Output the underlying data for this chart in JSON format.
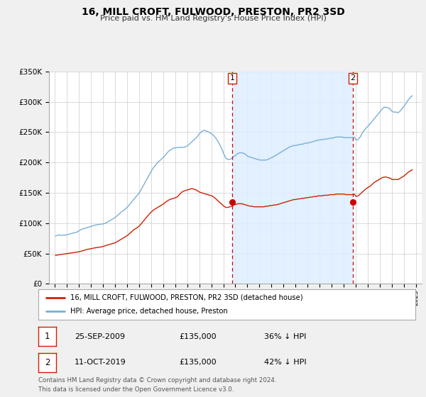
{
  "title": "16, MILL CROFT, FULWOOD, PRESTON, PR2 3SD",
  "subtitle": "Price paid vs. HM Land Registry's House Price Index (HPI)",
  "ylim": [
    0,
    350000
  ],
  "yticks": [
    0,
    50000,
    100000,
    150000,
    200000,
    250000,
    300000,
    350000
  ],
  "ytick_labels": [
    "£0",
    "£50K",
    "£100K",
    "£150K",
    "£200K",
    "£250K",
    "£300K",
    "£350K"
  ],
  "xlim_start": 1994.5,
  "xlim_end": 2025.5,
  "background_color": "#f0f0f0",
  "plot_bg_color": "#ffffff",
  "grid_color": "#cccccc",
  "hpi_color": "#7ab0d4",
  "price_color": "#cc2200",
  "marker_color": "#cc0000",
  "shade_color": "#ddeeff",
  "vline_color": "#cc0000",
  "event1_x": 2009.73,
  "event1_price": 135000,
  "event1_date": "25-SEP-2009",
  "event1_pct": "36% ↓ HPI",
  "event2_x": 2019.78,
  "event2_price": 135000,
  "event2_date": "11-OCT-2019",
  "event2_pct": "42% ↓ HPI",
  "legend_label_price": "16, MILL CROFT, FULWOOD, PRESTON, PR2 3SD (detached house)",
  "legend_label_hpi": "HPI: Average price, detached house, Preston",
  "footer_line1": "Contains HM Land Registry data © Crown copyright and database right 2024.",
  "footer_line2": "This data is licensed under the Open Government Licence v3.0.",
  "hpi_data": [
    [
      1995.04,
      79000
    ],
    [
      1995.21,
      80000
    ],
    [
      1995.38,
      80500
    ],
    [
      1995.54,
      80000
    ],
    [
      1995.71,
      80500
    ],
    [
      1995.88,
      80500
    ],
    [
      1996.04,
      81000
    ],
    [
      1996.21,
      82000
    ],
    [
      1996.38,
      83000
    ],
    [
      1996.54,
      84000
    ],
    [
      1996.71,
      84500
    ],
    [
      1996.88,
      86000
    ],
    [
      1997.04,
      88000
    ],
    [
      1997.21,
      90000
    ],
    [
      1997.38,
      91000
    ],
    [
      1997.54,
      92000
    ],
    [
      1997.71,
      93000
    ],
    [
      1997.88,
      94000
    ],
    [
      1998.04,
      95000
    ],
    [
      1998.21,
      96000
    ],
    [
      1998.38,
      97000
    ],
    [
      1998.54,
      97500
    ],
    [
      1998.71,
      98000
    ],
    [
      1998.88,
      98500
    ],
    [
      1999.04,
      99000
    ],
    [
      1999.21,
      100000
    ],
    [
      1999.38,
      102000
    ],
    [
      1999.54,
      104000
    ],
    [
      1999.71,
      106000
    ],
    [
      1999.88,
      108000
    ],
    [
      2000.04,
      110000
    ],
    [
      2000.21,
      113000
    ],
    [
      2000.38,
      116000
    ],
    [
      2000.54,
      119000
    ],
    [
      2000.71,
      121000
    ],
    [
      2000.88,
      124000
    ],
    [
      2001.04,
      127000
    ],
    [
      2001.21,
      131000
    ],
    [
      2001.38,
      135000
    ],
    [
      2001.54,
      139000
    ],
    [
      2001.71,
      143000
    ],
    [
      2001.88,
      147000
    ],
    [
      2002.04,
      151000
    ],
    [
      2002.21,
      157000
    ],
    [
      2002.38,
      163000
    ],
    [
      2002.54,
      169000
    ],
    [
      2002.71,
      175000
    ],
    [
      2002.88,
      181000
    ],
    [
      2003.04,
      187000
    ],
    [
      2003.21,
      192000
    ],
    [
      2003.38,
      196000
    ],
    [
      2003.54,
      200000
    ],
    [
      2003.71,
      203000
    ],
    [
      2003.88,
      206000
    ],
    [
      2004.04,
      209000
    ],
    [
      2004.21,
      213000
    ],
    [
      2004.38,
      217000
    ],
    [
      2004.54,
      220000
    ],
    [
      2004.71,
      222000
    ],
    [
      2004.88,
      224000
    ],
    [
      2005.04,
      224000
    ],
    [
      2005.21,
      225000
    ],
    [
      2005.38,
      225000
    ],
    [
      2005.54,
      225000
    ],
    [
      2005.71,
      225000
    ],
    [
      2005.88,
      226000
    ],
    [
      2006.04,
      228000
    ],
    [
      2006.21,
      231000
    ],
    [
      2006.38,
      234000
    ],
    [
      2006.54,
      237000
    ],
    [
      2006.71,
      240000
    ],
    [
      2006.88,
      244000
    ],
    [
      2007.04,
      248000
    ],
    [
      2007.21,
      251000
    ],
    [
      2007.38,
      253000
    ],
    [
      2007.54,
      252000
    ],
    [
      2007.71,
      251000
    ],
    [
      2007.88,
      249000
    ],
    [
      2008.04,
      247000
    ],
    [
      2008.21,
      244000
    ],
    [
      2008.38,
      240000
    ],
    [
      2008.54,
      235000
    ],
    [
      2008.71,
      229000
    ],
    [
      2008.88,
      222000
    ],
    [
      2009.04,
      214000
    ],
    [
      2009.21,
      207000
    ],
    [
      2009.38,
      205000
    ],
    [
      2009.54,
      205000
    ],
    [
      2009.71,
      207000
    ],
    [
      2009.88,
      210000
    ],
    [
      2010.04,
      212000
    ],
    [
      2010.21,
      215000
    ],
    [
      2010.38,
      216000
    ],
    [
      2010.54,
      216000
    ],
    [
      2010.71,
      215000
    ],
    [
      2010.88,
      213000
    ],
    [
      2011.04,
      210000
    ],
    [
      2011.21,
      209000
    ],
    [
      2011.38,
      208000
    ],
    [
      2011.54,
      207000
    ],
    [
      2011.71,
      206000
    ],
    [
      2011.88,
      205000
    ],
    [
      2012.04,
      204000
    ],
    [
      2012.21,
      204000
    ],
    [
      2012.38,
      204000
    ],
    [
      2012.54,
      204000
    ],
    [
      2012.71,
      205000
    ],
    [
      2012.88,
      207000
    ],
    [
      2013.04,
      208000
    ],
    [
      2013.21,
      210000
    ],
    [
      2013.38,
      212000
    ],
    [
      2013.54,
      214000
    ],
    [
      2013.71,
      216000
    ],
    [
      2013.88,
      218000
    ],
    [
      2014.04,
      220000
    ],
    [
      2014.21,
      222000
    ],
    [
      2014.38,
      224000
    ],
    [
      2014.54,
      226000
    ],
    [
      2014.71,
      227000
    ],
    [
      2014.88,
      228000
    ],
    [
      2015.04,
      228000
    ],
    [
      2015.21,
      229000
    ],
    [
      2015.38,
      230000
    ],
    [
      2015.54,
      230000
    ],
    [
      2015.71,
      231000
    ],
    [
      2015.88,
      232000
    ],
    [
      2016.04,
      232000
    ],
    [
      2016.21,
      233000
    ],
    [
      2016.38,
      234000
    ],
    [
      2016.54,
      235000
    ],
    [
      2016.71,
      236000
    ],
    [
      2016.88,
      237000
    ],
    [
      2017.04,
      237000
    ],
    [
      2017.21,
      238000
    ],
    [
      2017.38,
      238000
    ],
    [
      2017.54,
      239000
    ],
    [
      2017.71,
      239000
    ],
    [
      2017.88,
      240000
    ],
    [
      2018.04,
      240000
    ],
    [
      2018.21,
      241000
    ],
    [
      2018.38,
      242000
    ],
    [
      2018.54,
      242000
    ],
    [
      2018.71,
      242000
    ],
    [
      2018.88,
      242000
    ],
    [
      2019.04,
      241000
    ],
    [
      2019.21,
      241000
    ],
    [
      2019.38,
      241000
    ],
    [
      2019.54,
      241000
    ],
    [
      2019.71,
      241000
    ],
    [
      2019.88,
      242000
    ],
    [
      2020.04,
      237000
    ],
    [
      2020.21,
      238000
    ],
    [
      2020.38,
      242000
    ],
    [
      2020.54,
      248000
    ],
    [
      2020.71,
      253000
    ],
    [
      2020.88,
      257000
    ],
    [
      2021.04,
      260000
    ],
    [
      2021.21,
      264000
    ],
    [
      2021.38,
      268000
    ],
    [
      2021.54,
      272000
    ],
    [
      2021.71,
      276000
    ],
    [
      2021.88,
      280000
    ],
    [
      2022.04,
      284000
    ],
    [
      2022.21,
      288000
    ],
    [
      2022.38,
      291000
    ],
    [
      2022.54,
      291000
    ],
    [
      2022.71,
      290000
    ],
    [
      2022.88,
      288000
    ],
    [
      2023.04,
      284000
    ],
    [
      2023.21,
      283000
    ],
    [
      2023.38,
      283000
    ],
    [
      2023.54,
      282000
    ],
    [
      2023.71,
      285000
    ],
    [
      2023.88,
      289000
    ],
    [
      2024.04,
      293000
    ],
    [
      2024.21,
      298000
    ],
    [
      2024.38,
      303000
    ],
    [
      2024.54,
      307000
    ],
    [
      2024.71,
      310000
    ]
  ],
  "price_data": [
    [
      1995.04,
      47000
    ],
    [
      1995.21,
      47500
    ],
    [
      1995.38,
      48000
    ],
    [
      1995.54,
      48500
    ],
    [
      1995.71,
      49000
    ],
    [
      1995.88,
      49500
    ],
    [
      1996.04,
      50000
    ],
    [
      1996.21,
      50500
    ],
    [
      1996.38,
      51000
    ],
    [
      1996.54,
      51500
    ],
    [
      1996.71,
      52000
    ],
    [
      1996.88,
      52500
    ],
    [
      1997.04,
      53000
    ],
    [
      1997.21,
      54000
    ],
    [
      1997.38,
      55000
    ],
    [
      1997.54,
      56000
    ],
    [
      1997.71,
      57000
    ],
    [
      1997.88,
      57500
    ],
    [
      1998.04,
      58000
    ],
    [
      1998.21,
      59000
    ],
    [
      1998.38,
      59500
    ],
    [
      1998.54,
      60000
    ],
    [
      1998.71,
      60500
    ],
    [
      1998.88,
      61000
    ],
    [
      1999.04,
      62000
    ],
    [
      1999.21,
      63000
    ],
    [
      1999.38,
      64000
    ],
    [
      1999.54,
      65000
    ],
    [
      1999.71,
      66000
    ],
    [
      1999.88,
      67000
    ],
    [
      2000.04,
      68000
    ],
    [
      2000.21,
      70000
    ],
    [
      2000.38,
      72000
    ],
    [
      2000.54,
      74000
    ],
    [
      2000.71,
      76000
    ],
    [
      2000.88,
      78000
    ],
    [
      2001.04,
      80000
    ],
    [
      2001.21,
      83000
    ],
    [
      2001.38,
      86000
    ],
    [
      2001.54,
      89000
    ],
    [
      2001.71,
      91000
    ],
    [
      2001.88,
      93000
    ],
    [
      2002.04,
      96000
    ],
    [
      2002.21,
      100000
    ],
    [
      2002.38,
      104000
    ],
    [
      2002.54,
      108000
    ],
    [
      2002.71,
      112000
    ],
    [
      2002.88,
      116000
    ],
    [
      2003.04,
      119000
    ],
    [
      2003.21,
      122000
    ],
    [
      2003.38,
      124000
    ],
    [
      2003.54,
      126000
    ],
    [
      2003.71,
      128000
    ],
    [
      2003.88,
      130000
    ],
    [
      2004.04,
      132000
    ],
    [
      2004.21,
      135000
    ],
    [
      2004.38,
      137000
    ],
    [
      2004.54,
      139000
    ],
    [
      2004.71,
      140000
    ],
    [
      2004.88,
      141000
    ],
    [
      2005.04,
      142000
    ],
    [
      2005.21,
      144000
    ],
    [
      2005.38,
      148000
    ],
    [
      2005.54,
      151000
    ],
    [
      2005.71,
      153000
    ],
    [
      2005.88,
      154000
    ],
    [
      2006.04,
      155000
    ],
    [
      2006.21,
      156000
    ],
    [
      2006.38,
      157000
    ],
    [
      2006.54,
      156000
    ],
    [
      2006.71,
      155000
    ],
    [
      2006.88,
      153000
    ],
    [
      2007.04,
      151000
    ],
    [
      2007.21,
      150000
    ],
    [
      2007.38,
      149000
    ],
    [
      2007.54,
      148000
    ],
    [
      2007.71,
      147000
    ],
    [
      2007.88,
      146000
    ],
    [
      2008.04,
      145000
    ],
    [
      2008.21,
      143000
    ],
    [
      2008.38,
      140000
    ],
    [
      2008.54,
      137000
    ],
    [
      2008.71,
      134000
    ],
    [
      2008.88,
      131000
    ],
    [
      2009.04,
      128000
    ],
    [
      2009.21,
      126000
    ],
    [
      2009.38,
      126000
    ],
    [
      2009.54,
      127000
    ],
    [
      2009.71,
      128000
    ],
    [
      2009.88,
      130000
    ],
    [
      2010.04,
      131000
    ],
    [
      2010.21,
      132000
    ],
    [
      2010.38,
      132000
    ],
    [
      2010.54,
      132000
    ],
    [
      2010.71,
      131000
    ],
    [
      2010.88,
      130000
    ],
    [
      2011.04,
      129000
    ],
    [
      2011.21,
      128000
    ],
    [
      2011.38,
      128000
    ],
    [
      2011.54,
      127000
    ],
    [
      2011.71,
      127000
    ],
    [
      2011.88,
      127000
    ],
    [
      2012.04,
      127000
    ],
    [
      2012.21,
      127000
    ],
    [
      2012.38,
      127000
    ],
    [
      2012.54,
      128000
    ],
    [
      2012.71,
      128000
    ],
    [
      2012.88,
      129000
    ],
    [
      2013.04,
      129000
    ],
    [
      2013.21,
      130000
    ],
    [
      2013.38,
      130000
    ],
    [
      2013.54,
      131000
    ],
    [
      2013.71,
      132000
    ],
    [
      2013.88,
      133000
    ],
    [
      2014.04,
      134000
    ],
    [
      2014.21,
      135000
    ],
    [
      2014.38,
      136000
    ],
    [
      2014.54,
      137000
    ],
    [
      2014.71,
      138000
    ],
    [
      2014.88,
      139000
    ],
    [
      2015.04,
      139000
    ],
    [
      2015.21,
      140000
    ],
    [
      2015.38,
      140000
    ],
    [
      2015.54,
      141000
    ],
    [
      2015.71,
      141000
    ],
    [
      2015.88,
      142000
    ],
    [
      2016.04,
      142000
    ],
    [
      2016.21,
      143000
    ],
    [
      2016.38,
      143000
    ],
    [
      2016.54,
      144000
    ],
    [
      2016.71,
      144000
    ],
    [
      2016.88,
      145000
    ],
    [
      2017.04,
      145000
    ],
    [
      2017.21,
      145000
    ],
    [
      2017.38,
      146000
    ],
    [
      2017.54,
      146000
    ],
    [
      2017.71,
      146000
    ],
    [
      2017.88,
      147000
    ],
    [
      2018.04,
      147000
    ],
    [
      2018.21,
      147000
    ],
    [
      2018.38,
      148000
    ],
    [
      2018.54,
      148000
    ],
    [
      2018.71,
      148000
    ],
    [
      2018.88,
      148000
    ],
    [
      2019.04,
      148000
    ],
    [
      2019.21,
      147000
    ],
    [
      2019.38,
      147000
    ],
    [
      2019.54,
      147000
    ],
    [
      2019.71,
      147000
    ],
    [
      2019.88,
      148000
    ],
    [
      2020.04,
      144000
    ],
    [
      2020.21,
      145000
    ],
    [
      2020.38,
      148000
    ],
    [
      2020.54,
      151000
    ],
    [
      2020.71,
      154000
    ],
    [
      2020.88,
      157000
    ],
    [
      2021.04,
      159000
    ],
    [
      2021.21,
      161000
    ],
    [
      2021.38,
      164000
    ],
    [
      2021.54,
      167000
    ],
    [
      2021.71,
      169000
    ],
    [
      2021.88,
      171000
    ],
    [
      2022.04,
      173000
    ],
    [
      2022.21,
      175000
    ],
    [
      2022.38,
      176000
    ],
    [
      2022.54,
      176000
    ],
    [
      2022.71,
      175000
    ],
    [
      2022.88,
      174000
    ],
    [
      2023.04,
      172000
    ],
    [
      2023.21,
      172000
    ],
    [
      2023.38,
      172000
    ],
    [
      2023.54,
      172000
    ],
    [
      2023.71,
      174000
    ],
    [
      2023.88,
      176000
    ],
    [
      2024.04,
      178000
    ],
    [
      2024.21,
      181000
    ],
    [
      2024.38,
      184000
    ],
    [
      2024.54,
      186000
    ],
    [
      2024.71,
      188000
    ]
  ]
}
